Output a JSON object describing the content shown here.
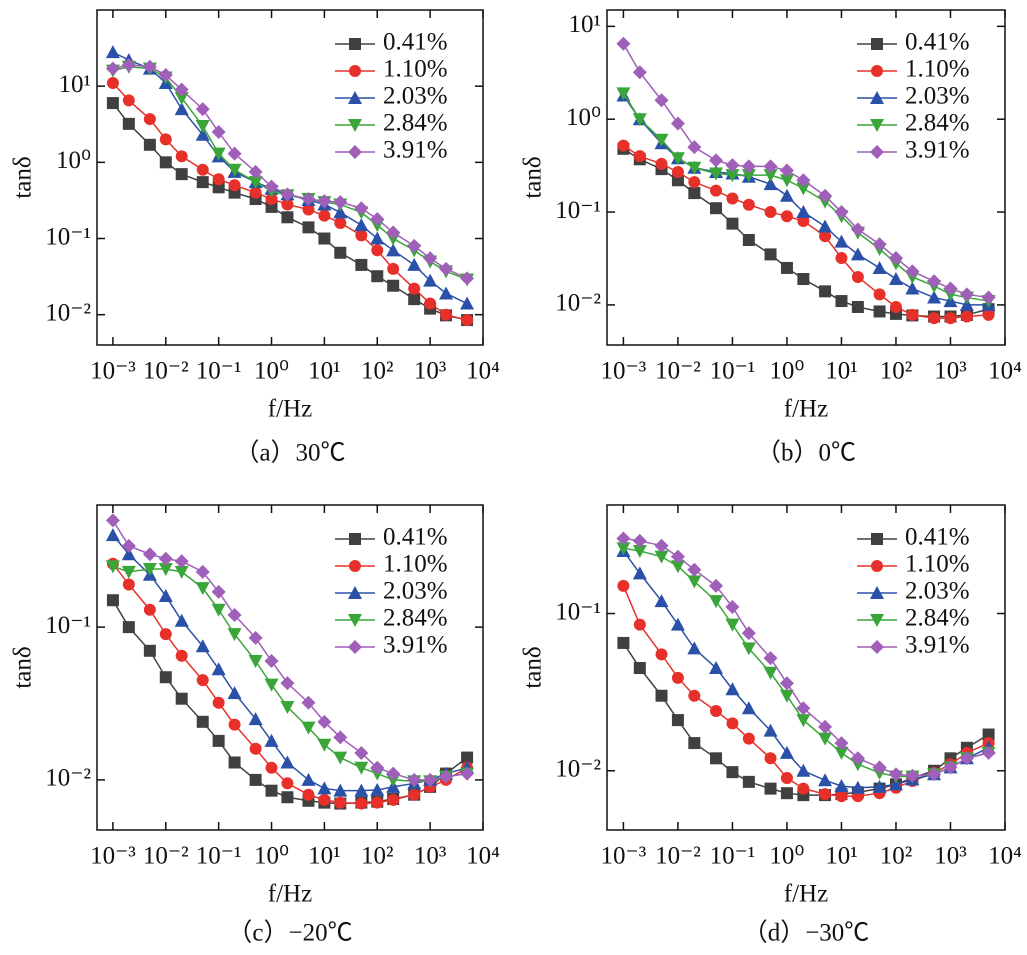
{
  "chart_data": [
    {
      "type": "line",
      "caption": "（a）30℃",
      "xlabel": "f/Hz",
      "ylabel": "tanδ",
      "xscale": "log",
      "yscale": "log",
      "legend": "upper right",
      "x": [
        0.001,
        0.002,
        0.005,
        0.01,
        0.02,
        0.05,
        0.1,
        0.2,
        0.5,
        1,
        2,
        5,
        10,
        20,
        50,
        100,
        200,
        500,
        1000,
        2000,
        5000
      ],
      "xlim": [
        0.0005,
        10000
      ],
      "xticks": [
        {
          "value": 0.001,
          "label": "10⁻³"
        },
        {
          "value": 0.01,
          "label": "10⁻²"
        },
        {
          "value": 0.1,
          "label": "10⁻¹"
        },
        {
          "value": 1,
          "label": "10⁰"
        },
        {
          "value": 10,
          "label": "10¹"
        },
        {
          "value": 100,
          "label": "10²"
        },
        {
          "value": 1000,
          "label": "10³"
        },
        {
          "value": 10000,
          "label": "10⁴"
        }
      ],
      "ylim": [
        0.004,
        100
      ],
      "yticks": [
        {
          "value": 0.01,
          "label": "10⁻²"
        },
        {
          "value": 0.1,
          "label": "10⁻¹"
        },
        {
          "value": 1,
          "label": "10⁰"
        },
        {
          "value": 10,
          "label": "10¹"
        }
      ],
      "series": [
        {
          "name": "0.41%",
          "color": "#404040",
          "marker": "square",
          "values": [
            6,
            3.2,
            1.7,
            1.0,
            0.7,
            0.55,
            0.47,
            0.4,
            0.33,
            0.26,
            0.19,
            0.14,
            0.1,
            0.065,
            0.045,
            0.032,
            0.024,
            0.016,
            0.012,
            0.0098,
            0.0085
          ]
        },
        {
          "name": "1.10%",
          "color": "#e8302a",
          "marker": "circle",
          "values": [
            11,
            6.5,
            3.7,
            2.0,
            1.2,
            0.8,
            0.6,
            0.5,
            0.4,
            0.33,
            0.28,
            0.24,
            0.2,
            0.16,
            0.11,
            0.07,
            0.04,
            0.022,
            0.014,
            0.01,
            0.0085
          ]
        },
        {
          "name": "2.03%",
          "color": "#2b50a8",
          "marker": "triangle-up",
          "values": [
            28,
            22,
            17,
            11,
            5,
            2.3,
            1.2,
            0.75,
            0.55,
            0.45,
            0.38,
            0.32,
            0.28,
            0.22,
            0.15,
            0.1,
            0.07,
            0.045,
            0.028,
            0.019,
            0.014
          ]
        },
        {
          "name": "2.84%",
          "color": "#3aa63a",
          "marker": "triangle-down",
          "values": [
            16,
            18,
            17,
            13,
            7,
            3,
            1.3,
            0.8,
            0.55,
            0.42,
            0.37,
            0.33,
            0.3,
            0.28,
            0.22,
            0.15,
            0.1,
            0.07,
            0.05,
            0.037,
            0.029
          ]
        },
        {
          "name": "3.91%",
          "color": "#a05fb8",
          "marker": "diamond",
          "values": [
            17,
            19,
            18,
            14,
            9,
            5,
            2.5,
            1.3,
            0.75,
            0.48,
            0.38,
            0.33,
            0.31,
            0.3,
            0.25,
            0.18,
            0.12,
            0.08,
            0.055,
            0.04,
            0.03
          ]
        }
      ]
    },
    {
      "type": "line",
      "caption": "（b）0℃",
      "xlabel": "f/Hz",
      "ylabel": "tanδ",
      "xscale": "log",
      "yscale": "log",
      "legend": "upper right",
      "x": [
        0.001,
        0.002,
        0.005,
        0.01,
        0.02,
        0.05,
        0.1,
        0.2,
        0.5,
        1,
        2,
        5,
        10,
        20,
        50,
        100,
        200,
        500,
        1000,
        2000,
        5000
      ],
      "xlim": [
        0.0005,
        10000
      ],
      "xticks": [
        {
          "value": 0.001,
          "label": "10⁻³"
        },
        {
          "value": 0.01,
          "label": "10⁻²"
        },
        {
          "value": 0.1,
          "label": "10⁻¹"
        },
        {
          "value": 1,
          "label": "10⁰"
        },
        {
          "value": 10,
          "label": "10¹"
        },
        {
          "value": 100,
          "label": "10²"
        },
        {
          "value": 1000,
          "label": "10³"
        },
        {
          "value": 10000,
          "label": "10⁴"
        }
      ],
      "ylim": [
        0.0037,
        15
      ],
      "yticks": [
        {
          "value": 0.01,
          "label": "10⁻²"
        },
        {
          "value": 0.1,
          "label": "10⁻¹"
        },
        {
          "value": 1,
          "label": "10⁰"
        },
        {
          "value": 10,
          "label": "10¹"
        }
      ],
      "series": [
        {
          "name": "0.41%",
          "color": "#404040",
          "marker": "square",
          "values": [
            0.48,
            0.37,
            0.29,
            0.22,
            0.16,
            0.11,
            0.075,
            0.05,
            0.035,
            0.025,
            0.019,
            0.014,
            0.011,
            0.0095,
            0.0085,
            0.008,
            0.0077,
            0.0075,
            0.0075,
            0.0078,
            0.009
          ]
        },
        {
          "name": "1.10%",
          "color": "#e8302a",
          "marker": "circle",
          "values": [
            0.52,
            0.4,
            0.33,
            0.27,
            0.21,
            0.17,
            0.14,
            0.12,
            0.1,
            0.09,
            0.08,
            0.055,
            0.032,
            0.02,
            0.013,
            0.0095,
            0.0078,
            0.0072,
            0.0072,
            0.0075,
            0.0078
          ]
        },
        {
          "name": "2.03%",
          "color": "#2b50a8",
          "marker": "triangle-up",
          "values": [
            1.8,
            1.0,
            0.55,
            0.38,
            0.3,
            0.27,
            0.26,
            0.24,
            0.2,
            0.15,
            0.1,
            0.07,
            0.048,
            0.035,
            0.025,
            0.019,
            0.015,
            0.012,
            0.011,
            0.01,
            0.01
          ]
        },
        {
          "name": "2.84%",
          "color": "#3aa63a",
          "marker": "triangle-down",
          "values": [
            1.9,
            1.0,
            0.6,
            0.38,
            0.3,
            0.26,
            0.25,
            0.25,
            0.25,
            0.22,
            0.18,
            0.13,
            0.09,
            0.06,
            0.04,
            0.028,
            0.02,
            0.016,
            0.013,
            0.012,
            0.011
          ]
        },
        {
          "name": "3.91%",
          "color": "#a05fb8",
          "marker": "diamond",
          "values": [
            6.5,
            3.2,
            1.6,
            0.9,
            0.5,
            0.36,
            0.32,
            0.31,
            0.31,
            0.28,
            0.22,
            0.15,
            0.1,
            0.065,
            0.045,
            0.032,
            0.023,
            0.018,
            0.015,
            0.013,
            0.012
          ]
        }
      ]
    },
    {
      "type": "line",
      "caption": "（c）−20℃",
      "xlabel": "f/Hz",
      "ylabel": "tanδ",
      "xscale": "log",
      "yscale": "log",
      "legend": "upper right",
      "x": [
        0.001,
        0.002,
        0.005,
        0.01,
        0.02,
        0.05,
        0.1,
        0.2,
        0.5,
        1,
        2,
        5,
        10,
        20,
        50,
        100,
        200,
        500,
        1000,
        2000,
        5000
      ],
      "xlim": [
        0.0005,
        10000
      ],
      "xticks": [
        {
          "value": 0.001,
          "label": "10⁻³"
        },
        {
          "value": 0.01,
          "label": "10⁻²"
        },
        {
          "value": 0.1,
          "label": "10⁻¹"
        },
        {
          "value": 1,
          "label": "10⁰"
        },
        {
          "value": 10,
          "label": "10¹"
        },
        {
          "value": 100,
          "label": "10²"
        },
        {
          "value": 1000,
          "label": "10³"
        },
        {
          "value": 10000,
          "label": "10⁴"
        }
      ],
      "ylim": [
        0.0047,
        0.63
      ],
      "yticks": [
        {
          "value": 0.01,
          "label": "10⁻²"
        },
        {
          "value": 0.1,
          "label": "10⁻¹"
        }
      ],
      "series": [
        {
          "name": "0.41%",
          "color": "#404040",
          "marker": "square",
          "values": [
            0.15,
            0.1,
            0.07,
            0.047,
            0.034,
            0.024,
            0.018,
            0.013,
            0.01,
            0.0085,
            0.0077,
            0.0073,
            0.0071,
            0.007,
            0.0071,
            0.0072,
            0.0075,
            0.008,
            0.009,
            0.011,
            0.014
          ]
        },
        {
          "name": "1.10%",
          "color": "#e8302a",
          "marker": "circle",
          "values": [
            0.26,
            0.19,
            0.13,
            0.09,
            0.065,
            0.045,
            0.032,
            0.023,
            0.016,
            0.012,
            0.0095,
            0.008,
            0.0074,
            0.0071,
            0.007,
            0.0071,
            0.0074,
            0.008,
            0.009,
            0.01,
            0.012
          ]
        },
        {
          "name": "2.03%",
          "color": "#2b50a8",
          "marker": "triangle-up",
          "values": [
            0.4,
            0.3,
            0.22,
            0.16,
            0.11,
            0.075,
            0.053,
            0.037,
            0.025,
            0.018,
            0.013,
            0.01,
            0.0088,
            0.0085,
            0.0085,
            0.0086,
            0.009,
            0.0095,
            0.01,
            0.011,
            0.012
          ]
        },
        {
          "name": "2.84%",
          "color": "#3aa63a",
          "marker": "triangle-down",
          "values": [
            0.25,
            0.23,
            0.24,
            0.24,
            0.23,
            0.18,
            0.13,
            0.09,
            0.06,
            0.042,
            0.03,
            0.022,
            0.017,
            0.014,
            0.012,
            0.011,
            0.01,
            0.0098,
            0.0098,
            0.0105,
            0.011
          ]
        },
        {
          "name": "3.91%",
          "color": "#a05fb8",
          "marker": "diamond",
          "values": [
            0.5,
            0.34,
            0.3,
            0.28,
            0.27,
            0.23,
            0.17,
            0.12,
            0.085,
            0.06,
            0.043,
            0.032,
            0.024,
            0.019,
            0.015,
            0.012,
            0.011,
            0.01,
            0.01,
            0.0105,
            0.011
          ]
        }
      ]
    },
    {
      "type": "line",
      "caption": "（d）−30℃",
      "xlabel": "f/Hz",
      "ylabel": "tanδ",
      "xscale": "log",
      "yscale": "log",
      "legend": "upper right",
      "x": [
        0.001,
        0.002,
        0.005,
        0.01,
        0.02,
        0.05,
        0.1,
        0.2,
        0.5,
        1,
        2,
        5,
        10,
        20,
        50,
        100,
        200,
        500,
        1000,
        2000,
        5000
      ],
      "xlim": [
        0.0005,
        10000
      ],
      "xticks": [
        {
          "value": 0.001,
          "label": "10⁻³"
        },
        {
          "value": 0.01,
          "label": "10⁻²"
        },
        {
          "value": 0.1,
          "label": "10⁻¹"
        },
        {
          "value": 1,
          "label": "10⁰"
        },
        {
          "value": 10,
          "label": "10¹"
        },
        {
          "value": 100,
          "label": "10²"
        },
        {
          "value": 1000,
          "label": "10³"
        },
        {
          "value": 10000,
          "label": "10⁴"
        }
      ],
      "ylim": [
        0.0042,
        0.49
      ],
      "yticks": [
        {
          "value": 0.01,
          "label": "10⁻²"
        },
        {
          "value": 0.1,
          "label": "10⁻¹"
        }
      ],
      "series": [
        {
          "name": "0.41%",
          "color": "#404040",
          "marker": "square",
          "values": [
            0.065,
            0.045,
            0.03,
            0.021,
            0.015,
            0.012,
            0.0098,
            0.0085,
            0.0077,
            0.0072,
            0.007,
            0.007,
            0.0071,
            0.0073,
            0.0077,
            0.0082,
            0.009,
            0.01,
            0.012,
            0.014,
            0.017
          ]
        },
        {
          "name": "1.10%",
          "color": "#e8302a",
          "marker": "circle",
          "values": [
            0.15,
            0.085,
            0.055,
            0.039,
            0.03,
            0.024,
            0.02,
            0.016,
            0.012,
            0.009,
            0.0077,
            0.0071,
            0.0069,
            0.0069,
            0.0072,
            0.0078,
            0.0086,
            0.0097,
            0.011,
            0.013,
            0.015
          ]
        },
        {
          "name": "2.03%",
          "color": "#2b50a8",
          "marker": "triangle-up",
          "values": [
            0.25,
            0.18,
            0.12,
            0.085,
            0.06,
            0.045,
            0.033,
            0.025,
            0.018,
            0.013,
            0.01,
            0.0087,
            0.008,
            0.0078,
            0.0079,
            0.0082,
            0.0088,
            0.0095,
            0.0105,
            0.012,
            0.014
          ]
        },
        {
          "name": "2.84%",
          "color": "#3aa63a",
          "marker": "triangle-down",
          "values": [
            0.26,
            0.25,
            0.23,
            0.2,
            0.16,
            0.12,
            0.085,
            0.06,
            0.042,
            0.03,
            0.021,
            0.016,
            0.013,
            0.011,
            0.0097,
            0.0092,
            0.0092,
            0.0095,
            0.0105,
            0.012,
            0.013
          ]
        },
        {
          "name": "3.91%",
          "color": "#a05fb8",
          "marker": "diamond",
          "values": [
            0.3,
            0.29,
            0.27,
            0.23,
            0.19,
            0.15,
            0.11,
            0.075,
            0.052,
            0.036,
            0.025,
            0.019,
            0.015,
            0.012,
            0.0105,
            0.0095,
            0.0093,
            0.0095,
            0.0105,
            0.012,
            0.013
          ]
        }
      ]
    }
  ]
}
